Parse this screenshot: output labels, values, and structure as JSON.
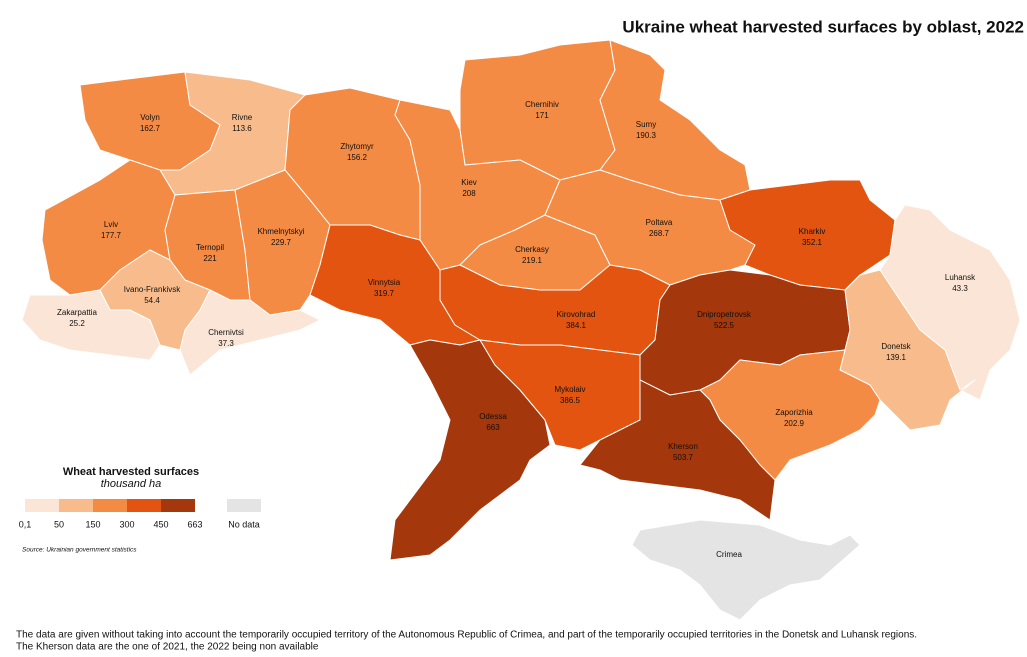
{
  "title": "Ukraine wheat harvested surfaces by oblast, 2022",
  "legend": {
    "title": "Wheat harvested surfaces",
    "subtitle": "thousand ha",
    "breaks": [
      {
        "value": 0.1,
        "label": "0,1"
      },
      50,
      150,
      300,
      450,
      663
    ],
    "colors": [
      "#fbe5d6",
      "#f8bc8c",
      "#f48b45",
      "#e2540f",
      "#a4370b"
    ],
    "no_data_label": "No data",
    "no_data_color": "#e4e4e4"
  },
  "source": "Source: Ukrainian government statistics",
  "notes": [
    "The data are given without taking into account the temporarily occupied territory of the Autonomous Republic of Crimea, and part of the temporarily occupied territories in the Donetsk and Luhansk regions.",
    "The Kherson data are the one of 2021, the 2022 being non available"
  ],
  "regions": [
    {
      "name": "Volyn",
      "value": 162.7
    },
    {
      "name": "Rivne",
      "value": 113.6
    },
    {
      "name": "Zhytomyr",
      "value": 156.2
    },
    {
      "name": "Chernihiv",
      "value": 171
    },
    {
      "name": "Sumy",
      "value": 190.3
    },
    {
      "name": "Kiev",
      "value": 208
    },
    {
      "name": "Lviv",
      "value": 177.7
    },
    {
      "name": "Ternopil",
      "value": 221
    },
    {
      "name": "Khmelnytskyi",
      "value": 229.7
    },
    {
      "name": "Cherkasy",
      "value": 219.1
    },
    {
      "name": "Poltava",
      "value": 268.7
    },
    {
      "name": "Kharkiv",
      "value": 352.1
    },
    {
      "name": "Luhansk",
      "value": 43.3
    },
    {
      "name": "Zakarpattia",
      "value": 25.2
    },
    {
      "name": "Ivano-Frankivsk",
      "value": 54.4
    },
    {
      "name": "Chernivtsi",
      "value": 37.3
    },
    {
      "name": "Vinnytsia",
      "value": 319.7
    },
    {
      "name": "Kirovohrad",
      "value": 384.1
    },
    {
      "name": "Dnipropetrovsk",
      "value": 522.5
    },
    {
      "name": "Donetsk",
      "value": 139.1
    },
    {
      "name": "Odessa",
      "value": 663
    },
    {
      "name": "Mykolaiv",
      "value": 386.5
    },
    {
      "name": "Zaporizhia",
      "value": 202.9
    },
    {
      "name": "Kherson",
      "value": 503.7
    },
    {
      "name": "Crimea",
      "value": null
    }
  ]
}
